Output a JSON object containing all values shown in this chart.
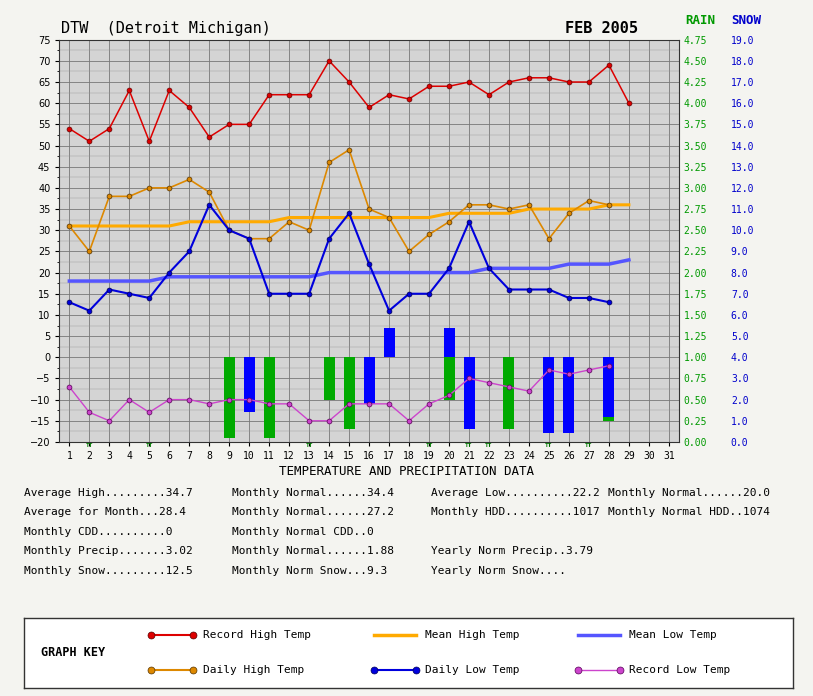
{
  "title_left": "DTW  (Detroit Michigan)",
  "title_right": "FEB 2005",
  "record_high": [
    54,
    51,
    54,
    63,
    51,
    63,
    59,
    52,
    55,
    55,
    62,
    62,
    62,
    70,
    65,
    59,
    62,
    61,
    64,
    64,
    65,
    62,
    65,
    66,
    66,
    65,
    65,
    69,
    60,
    null,
    null
  ],
  "mean_high": [
    31,
    31,
    31,
    31,
    31,
    31,
    32,
    32,
    32,
    32,
    32,
    33,
    33,
    33,
    33,
    33,
    33,
    33,
    33,
    34,
    34,
    34,
    34,
    35,
    35,
    35,
    35,
    36,
    36,
    null,
    null
  ],
  "daily_high": [
    31,
    25,
    38,
    38,
    40,
    40,
    42,
    39,
    30,
    28,
    28,
    32,
    30,
    46,
    49,
    35,
    33,
    25,
    29,
    32,
    36,
    36,
    35,
    36,
    28,
    34,
    37,
    36,
    null,
    null,
    null
  ],
  "daily_low": [
    13,
    11,
    16,
    15,
    14,
    20,
    25,
    36,
    30,
    28,
    15,
    15,
    15,
    28,
    34,
    22,
    11,
    15,
    15,
    21,
    32,
    21,
    16,
    16,
    16,
    14,
    14,
    13,
    null,
    null,
    null
  ],
  "mean_low": [
    18,
    18,
    18,
    18,
    18,
    19,
    19,
    19,
    19,
    19,
    19,
    19,
    19,
    20,
    20,
    20,
    20,
    20,
    20,
    20,
    20,
    21,
    21,
    21,
    21,
    22,
    22,
    22,
    23,
    null,
    null
  ],
  "record_low": [
    -7,
    -13,
    -15,
    -10,
    -13,
    -10,
    -10,
    -11,
    -10,
    -10,
    -11,
    -11,
    -15,
    -15,
    -11,
    -11,
    -11,
    -15,
    -11,
    -9,
    -5,
    -6,
    -7,
    -8,
    -3,
    -4,
    -3,
    -2,
    null,
    null,
    null
  ],
  "green_bars": {
    "9": -19,
    "11": -19,
    "14": -10,
    "15": -17,
    "20": -10,
    "23": -17,
    "28": -15
  },
  "blue_bars": {
    "10": -13,
    "16": -11,
    "17": 7,
    "20": 7,
    "21": -17,
    "25": -18,
    "26": -18,
    "28": -14
  },
  "trace_days_green": [
    2,
    5,
    13,
    19,
    21,
    22,
    25,
    27
  ],
  "trace_days_blue": [],
  "record_high_color": "#dd0000",
  "mean_high_color": "#ffaa00",
  "daily_high_color": "#ffaa00",
  "daily_low_color": "#0000dd",
  "mean_low_color": "#5555ff",
  "record_low_color": "#cc44cc",
  "rain_bar_color": "#0000ff",
  "snow_bar_color": "#00aa00",
  "bg_color": "#d4d4d4",
  "outer_bg": "#f4f4f0",
  "ymin": -20,
  "ymax": 75,
  "rain_ticks": [
    0.0,
    0.25,
    0.5,
    0.75,
    1.0,
    1.25,
    1.5,
    1.75,
    2.0,
    2.25,
    2.5,
    2.75,
    3.0,
    3.25,
    3.5,
    3.75,
    4.0,
    4.25,
    4.5,
    4.75
  ],
  "snow_ticks": [
    0.0,
    1.0,
    2.0,
    3.0,
    4.0,
    5.0,
    6.0,
    7.0,
    8.0,
    9.0,
    10.0,
    11.0,
    12.0,
    13.0,
    14.0,
    15.0,
    16.0,
    17.0,
    18.0,
    19.0
  ]
}
